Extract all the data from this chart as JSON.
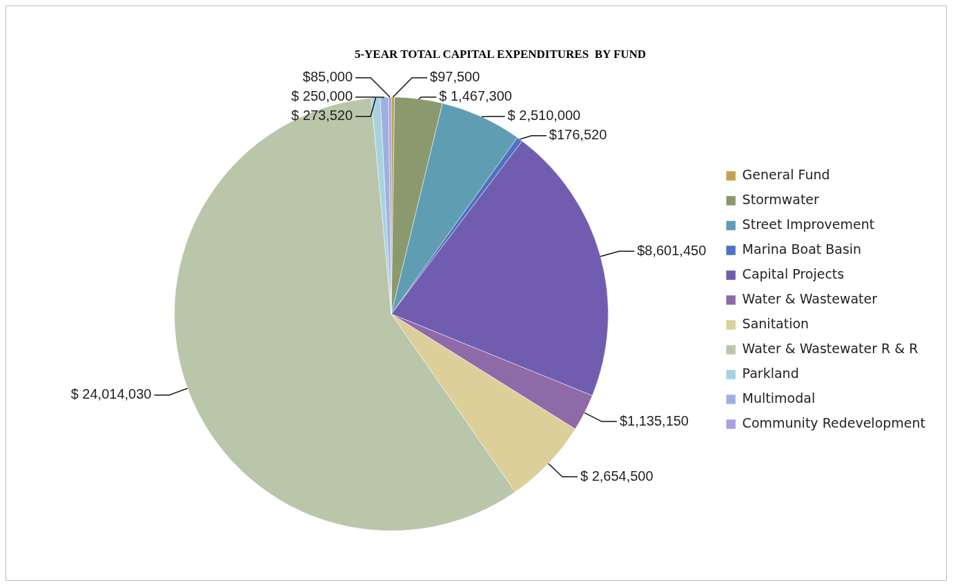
{
  "chart_data": {
    "type": "pie",
    "title": "5-YEAR TOTAL CAPITAL EXPENDITURES  BY FUND",
    "categories": [
      "General Fund",
      "Stormwater",
      "Street Improvement",
      "Marina Boat Basin",
      "Capital Projects",
      "Water & Wastewater",
      "Sanitation",
      "Water & Wastewater R & R",
      "Parkland",
      "Multimodal",
      "Community Redevelopment"
    ],
    "values": [
      97500,
      1467300,
      2510000,
      176520,
      8601450,
      1135150,
      2654500,
      24014030,
      273520,
      250000,
      85000
    ],
    "value_labels": [
      "$97,500",
      "$ 1,467,300",
      "$ 2,510,000",
      "$176,520",
      "$8,601,450",
      "$1,135,150",
      "$ 2,654,500",
      "$ 24,014,030",
      "$ 273,520",
      "$ 250,000",
      "$85,000"
    ],
    "colors": [
      "#c4a24c",
      "#8a9a6e",
      "#5f9db3",
      "#4f72c0",
      "#715db0",
      "#8e6aa8",
      "#dccf9a",
      "#b9c6aa",
      "#a6d3df",
      "#9fb0e0",
      "#a9a2e0"
    ],
    "legend": "right"
  }
}
